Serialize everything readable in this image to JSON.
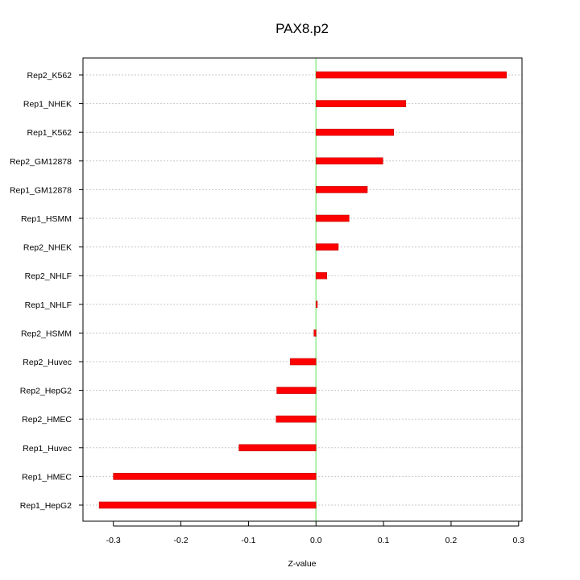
{
  "chart_data": {
    "type": "bar",
    "orientation": "horizontal",
    "title": "PAX8.p2",
    "xlabel": "Z-value",
    "ylabel": "",
    "xlim": [
      -0.345,
      0.305
    ],
    "xticks": [
      -0.3,
      -0.2,
      -0.1,
      0.0,
      0.1,
      0.2,
      0.3
    ],
    "xtick_labels": [
      "-0.3",
      "-0.2",
      "-0.1",
      "0.0",
      "0.1",
      "0.2",
      "0.3"
    ],
    "grid": true,
    "categories": [
      "Rep2_K562",
      "Rep1_NHEK",
      "Rep1_K562",
      "Rep2_GM12878",
      "Rep1_GM12878",
      "Rep1_HSMM",
      "Rep2_NHEK",
      "Rep2_NHLF",
      "Rep1_NHLF",
      "Rep2_HSMM",
      "Rep2_Huvec",
      "Rep2_HepG2",
      "Rep2_HMEC",
      "Rep1_Huvec",
      "Rep1_HMEC",
      "Rep1_HepG2"
    ],
    "values": [
      0.282,
      0.133,
      0.115,
      0.099,
      0.076,
      0.049,
      0.033,
      0.016,
      0.002,
      -0.003,
      -0.038,
      -0.058,
      -0.059,
      -0.114,
      -0.3,
      -0.321
    ],
    "colors": {
      "bar": "#ff0000",
      "bar_edge": "#c00000",
      "zero_line": "#90ee90",
      "grid": "#c8c8c8",
      "axis": "#000000"
    }
  }
}
